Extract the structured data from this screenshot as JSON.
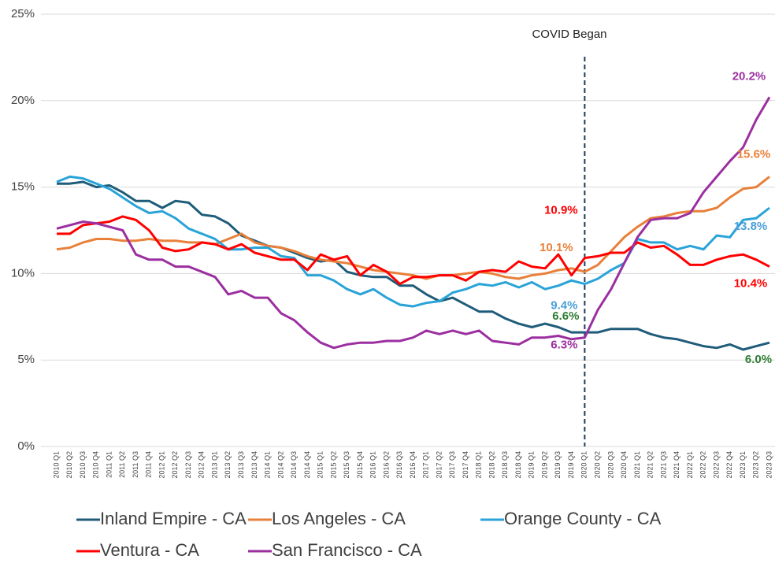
{
  "chart_data": {
    "type": "line",
    "annotation": {
      "text": "COVID Began",
      "x": "2020 Q1"
    },
    "categories": [
      "2010 Q1",
      "2010 Q2",
      "2010 Q3",
      "2010 Q4",
      "2011 Q1",
      "2011 Q2",
      "2011 Q3",
      "2011 Q4",
      "2012 Q1",
      "2012 Q2",
      "2012 Q3",
      "2012 Q4",
      "2013 Q1",
      "2013 Q2",
      "2013 Q3",
      "2013 Q4",
      "2014 Q1",
      "2014 Q2",
      "2014 Q3",
      "2014 Q4",
      "2015 Q1",
      "2015 Q2",
      "2015 Q3",
      "2015 Q4",
      "2016 Q1",
      "2016 Q2",
      "2016 Q3",
      "2016 Q4",
      "2017 Q1",
      "2017 Q2",
      "2017 Q3",
      "2017 Q4",
      "2018 Q1",
      "2018 Q2",
      "2018 Q3",
      "2018 Q4",
      "2019 Q1",
      "2019 Q2",
      "2019 Q3",
      "2019 Q4",
      "2020 Q1",
      "2020 Q2",
      "2020 Q3",
      "2020 Q4",
      "2021 Q1",
      "2021 Q2",
      "2021 Q3",
      "2021 Q4",
      "2022 Q1",
      "2022 Q2",
      "2022 Q3",
      "2022 Q4",
      "2023 Q1",
      "2023 Q2",
      "2023 Q3"
    ],
    "ylim": [
      0,
      25
    ],
    "yticks": [
      {
        "value": 0,
        "label": "0%"
      },
      {
        "value": 5,
        "label": "5%"
      },
      {
        "value": 10,
        "label": "10%"
      },
      {
        "value": 15,
        "label": "15%"
      },
      {
        "value": 20,
        "label": "20%"
      },
      {
        "value": 25,
        "label": "25%"
      }
    ],
    "grid": true,
    "series": [
      {
        "name": "Inland Empire - CA",
        "color": "#1f5c7a",
        "label_color": "#2e7d32",
        "values": [
          15.2,
          15.2,
          15.3,
          15.0,
          15.1,
          14.7,
          14.2,
          14.2,
          13.8,
          14.2,
          14.1,
          13.4,
          13.3,
          12.9,
          12.2,
          11.9,
          11.6,
          11.5,
          11.2,
          10.9,
          10.7,
          10.8,
          10.1,
          9.9,
          9.8,
          9.8,
          9.3,
          9.3,
          8.8,
          8.4,
          8.6,
          8.2,
          7.8,
          7.8,
          7.4,
          7.1,
          6.9,
          7.1,
          6.9,
          6.6,
          6.6,
          6.6,
          6.8,
          6.8,
          6.8,
          6.5,
          6.3,
          6.2,
          6.0,
          5.8,
          5.7,
          5.9,
          5.6,
          5.8,
          6.0
        ],
        "value_labels": [
          null,
          null,
          null,
          null,
          null,
          null,
          null,
          null,
          null,
          null,
          null,
          null,
          null,
          null,
          null,
          null,
          null,
          null,
          null,
          null,
          null,
          null,
          null,
          null,
          null,
          null,
          null,
          null,
          null,
          null,
          null,
          null,
          null,
          null,
          null,
          null,
          null,
          null,
          null,
          null,
          "6.6%",
          null,
          null,
          null,
          null,
          null,
          null,
          null,
          null,
          null,
          null,
          null,
          null,
          null,
          "6.0%"
        ]
      },
      {
        "name": "Los Angeles - CA",
        "color": "#e8803a",
        "label_color": "#e8803a",
        "values": [
          11.4,
          11.5,
          11.8,
          12.0,
          12.0,
          11.9,
          11.9,
          12.0,
          11.9,
          11.9,
          11.8,
          11.8,
          11.7,
          12.0,
          12.3,
          11.8,
          11.6,
          11.5,
          11.3,
          11.0,
          10.8,
          10.7,
          10.6,
          10.4,
          10.2,
          10.1,
          10.0,
          9.9,
          9.7,
          9.9,
          9.9,
          10.0,
          10.1,
          10.0,
          9.8,
          9.7,
          9.9,
          10.0,
          10.2,
          10.3,
          10.1,
          10.5,
          11.3,
          12.1,
          12.7,
          13.2,
          13.3,
          13.5,
          13.6,
          13.6,
          13.8,
          14.4,
          14.9,
          15.0,
          15.6
        ],
        "value_labels": [
          null,
          null,
          null,
          null,
          null,
          null,
          null,
          null,
          null,
          null,
          null,
          null,
          null,
          null,
          null,
          null,
          null,
          null,
          null,
          null,
          null,
          null,
          null,
          null,
          null,
          null,
          null,
          null,
          null,
          null,
          null,
          null,
          null,
          null,
          null,
          null,
          null,
          null,
          null,
          null,
          "10.1%",
          null,
          null,
          null,
          null,
          null,
          null,
          null,
          null,
          null,
          null,
          null,
          null,
          null,
          "15.6%"
        ]
      },
      {
        "name": "Orange County - CA",
        "color": "#29a3d8",
        "label_color": "#4a9fd8",
        "values": [
          15.3,
          15.6,
          15.5,
          15.2,
          14.9,
          14.4,
          13.9,
          13.5,
          13.6,
          13.2,
          12.6,
          12.3,
          12.0,
          11.4,
          11.4,
          11.5,
          11.5,
          11.0,
          10.9,
          9.9,
          9.9,
          9.6,
          9.1,
          8.8,
          9.1,
          8.6,
          8.2,
          8.1,
          8.3,
          8.4,
          8.9,
          9.1,
          9.4,
          9.3,
          9.5,
          9.2,
          9.5,
          9.1,
          9.3,
          9.6,
          9.4,
          9.7,
          10.2,
          10.6,
          12.0,
          11.8,
          11.8,
          11.4,
          11.6,
          11.4,
          12.2,
          12.1,
          13.1,
          13.2,
          13.8
        ],
        "value_labels": [
          null,
          null,
          null,
          null,
          null,
          null,
          null,
          null,
          null,
          null,
          null,
          null,
          null,
          null,
          null,
          null,
          null,
          null,
          null,
          null,
          null,
          null,
          null,
          null,
          null,
          null,
          null,
          null,
          null,
          null,
          null,
          null,
          null,
          null,
          null,
          null,
          null,
          null,
          null,
          null,
          "9.4%",
          null,
          null,
          null,
          null,
          null,
          null,
          null,
          null,
          null,
          null,
          null,
          null,
          null,
          "13.8%"
        ]
      },
      {
        "name": "Ventura - CA",
        "color": "#ff0000",
        "label_color": "#ff0000",
        "values": [
          12.3,
          12.3,
          12.8,
          12.9,
          13.0,
          13.3,
          13.1,
          12.5,
          11.5,
          11.3,
          11.4,
          11.8,
          11.7,
          11.4,
          11.7,
          11.2,
          11.0,
          10.8,
          10.8,
          10.2,
          11.1,
          10.8,
          11.0,
          9.9,
          10.5,
          10.1,
          9.4,
          9.8,
          9.8,
          9.9,
          9.9,
          9.6,
          10.1,
          10.2,
          10.1,
          10.7,
          10.4,
          10.3,
          11.1,
          9.9,
          10.9,
          11.0,
          11.2,
          11.2,
          11.8,
          11.5,
          11.6,
          11.1,
          10.5,
          10.5,
          10.8,
          11.0,
          11.1,
          10.8,
          10.4
        ],
        "value_labels": [
          null,
          null,
          null,
          null,
          null,
          null,
          null,
          null,
          null,
          null,
          null,
          null,
          null,
          null,
          null,
          null,
          null,
          null,
          null,
          null,
          null,
          null,
          null,
          null,
          null,
          null,
          null,
          null,
          null,
          null,
          null,
          null,
          null,
          null,
          null,
          null,
          null,
          null,
          null,
          null,
          "10.9%",
          null,
          null,
          null,
          null,
          null,
          null,
          null,
          null,
          null,
          null,
          null,
          null,
          null,
          "10.4%"
        ]
      },
      {
        "name": "San Francisco - CA",
        "color": "#9b2fa0",
        "label_color": "#9b2fa0",
        "values": [
          12.6,
          12.8,
          13.0,
          12.9,
          12.7,
          12.5,
          11.1,
          10.8,
          10.8,
          10.4,
          10.4,
          10.1,
          9.8,
          8.8,
          9.0,
          8.6,
          8.6,
          7.7,
          7.3,
          6.6,
          6.0,
          5.7,
          5.9,
          6.0,
          6.0,
          6.1,
          6.1,
          6.3,
          6.7,
          6.5,
          6.7,
          6.5,
          6.7,
          6.1,
          6.0,
          5.9,
          6.3,
          6.3,
          6.4,
          6.2,
          6.3,
          7.9,
          9.1,
          10.6,
          12.1,
          13.1,
          13.2,
          13.2,
          13.5,
          14.7,
          15.6,
          16.5,
          17.3,
          18.9,
          20.2
        ],
        "value_labels": [
          null,
          null,
          null,
          null,
          null,
          null,
          null,
          null,
          null,
          null,
          null,
          null,
          null,
          null,
          null,
          null,
          null,
          null,
          null,
          null,
          null,
          null,
          null,
          null,
          null,
          null,
          null,
          null,
          null,
          null,
          null,
          null,
          null,
          null,
          null,
          null,
          null,
          null,
          null,
          null,
          "6.3%",
          null,
          null,
          null,
          null,
          null,
          null,
          null,
          null,
          null,
          null,
          null,
          null,
          null,
          "20.2%"
        ]
      }
    ]
  }
}
